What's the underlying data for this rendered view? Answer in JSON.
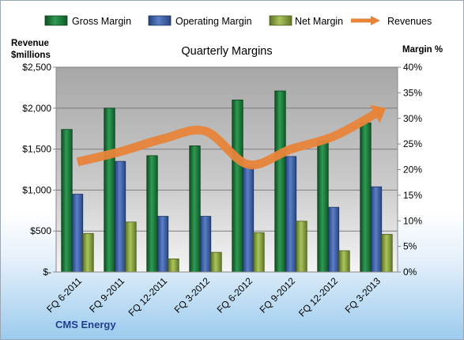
{
  "chart_data": {
    "type": "bar",
    "title": "Quarterly Margins",
    "company": "CMS Energy",
    "categories": [
      "FQ 6-2011",
      "FQ 9-2011",
      "FQ 12-2011",
      "FQ 3-2012",
      "FQ 6-2012",
      "FQ 9-2012",
      "FQ 12-2012",
      "FQ 3-2013"
    ],
    "series": [
      {
        "name": "Gross Margin",
        "axis": "left",
        "type": "bar",
        "color": "#1e7a3c",
        "values": [
          1740,
          2000,
          1420,
          1540,
          2100,
          2210,
          1600,
          1820
        ]
      },
      {
        "name": "Operating Margin",
        "axis": "left",
        "type": "bar",
        "color": "#3b5fa8",
        "values": [
          950,
          1350,
          680,
          680,
          1280,
          1410,
          790,
          1040
        ]
      },
      {
        "name": "Net Margin",
        "axis": "left",
        "type": "bar",
        "color": "#8ea63d",
        "values": [
          470,
          610,
          160,
          240,
          480,
          620,
          260,
          460
        ]
      },
      {
        "name": "Revenues",
        "axis": "right",
        "type": "line",
        "color": "#e8843a",
        "values": [
          21.5,
          23.5,
          26,
          27.5,
          21,
          24,
          26.5,
          31
        ]
      }
    ],
    "y_left": {
      "label_line1": "Revenue",
      "label_line2": "$millions",
      "min": 0,
      "max": 2500,
      "ticks": [
        0,
        500,
        1000,
        1500,
        2000,
        2500
      ],
      "tick_labels": [
        "$-",
        "$500",
        "$1,000",
        "$1,500",
        "$2,000",
        "$2,500"
      ]
    },
    "y_right": {
      "label": "Margin %",
      "min": 0,
      "max": 40,
      "ticks": [
        0,
        5,
        10,
        15,
        20,
        25,
        30,
        35,
        40
      ],
      "tick_labels": [
        "0%",
        "5%",
        "10%",
        "15%",
        "20%",
        "25%",
        "30%",
        "35%",
        "40%"
      ]
    },
    "grid": true,
    "legend": "top"
  }
}
